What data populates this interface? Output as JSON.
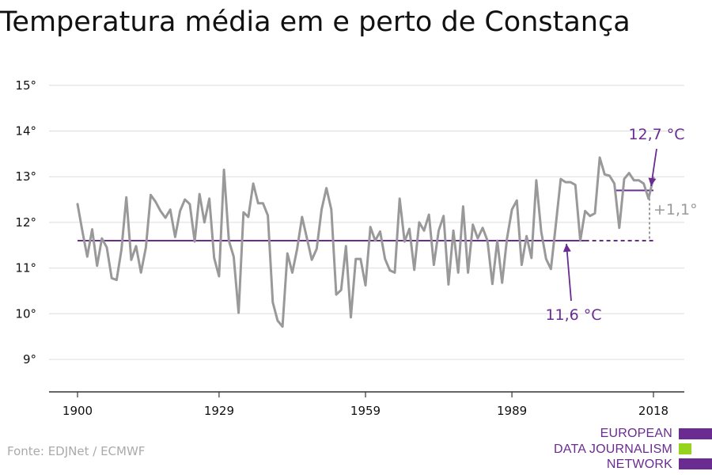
{
  "title": "Temperatura média em e perto de Constança",
  "source": "Fonte: EDJNet / ECMWF",
  "logo": {
    "lines": [
      "EUROPEAN",
      "DATA JOURNALISM",
      "NETWORK"
    ],
    "colors": {
      "primary": "#6a2c91",
      "accent": "#96d31e"
    }
  },
  "colors": {
    "series": "#999999",
    "baseline": "#6a2c91",
    "recent": "#6a2c91",
    "grid": "#dddddd",
    "axis": "#333333",
    "difference": "#999999"
  },
  "chart_data": {
    "type": "line",
    "ylim": [
      8.2,
      15.4
    ],
    "xlim": [
      1900,
      2018
    ],
    "y_ticks": [
      9,
      10,
      11,
      12,
      13,
      14,
      15
    ],
    "y_tick_labels": [
      "9°",
      "10°",
      "11°",
      "12°",
      "13°",
      "14°",
      "15°"
    ],
    "x_ticks": [
      1900,
      1929,
      1959,
      1989,
      2018
    ],
    "x_tick_labels": [
      "1900",
      "1929",
      "1959",
      "1989",
      "2018"
    ],
    "grid": true,
    "x": [
      1900,
      1901,
      1902,
      1903,
      1904,
      1905,
      1906,
      1907,
      1908,
      1909,
      1910,
      1911,
      1912,
      1913,
      1914,
      1915,
      1916,
      1917,
      1918,
      1919,
      1920,
      1921,
      1922,
      1923,
      1924,
      1925,
      1926,
      1927,
      1928,
      1929,
      1930,
      1931,
      1932,
      1933,
      1934,
      1935,
      1936,
      1937,
      1938,
      1939,
      1940,
      1941,
      1942,
      1943,
      1944,
      1945,
      1946,
      1947,
      1948,
      1949,
      1950,
      1951,
      1952,
      1953,
      1954,
      1955,
      1956,
      1957,
      1958,
      1959,
      1960,
      1961,
      1962,
      1963,
      1964,
      1965,
      1966,
      1967,
      1968,
      1969,
      1970,
      1971,
      1972,
      1973,
      1974,
      1975,
      1976,
      1977,
      1978,
      1979,
      1980,
      1981,
      1982,
      1983,
      1984,
      1985,
      1986,
      1987,
      1988,
      1989,
      1990,
      1991,
      1992,
      1993,
      1994,
      1995,
      1996,
      1997,
      1998,
      1999,
      2000,
      2001,
      2002,
      2003,
      2004,
      2005,
      2006,
      2007,
      2008,
      2009,
      2010,
      2011,
      2012,
      2013,
      2014,
      2015,
      2016,
      2017,
      2018
    ],
    "y": [
      12.4,
      11.8,
      11.25,
      11.85,
      11.05,
      11.65,
      11.45,
      10.78,
      10.74,
      11.4,
      12.55,
      11.18,
      11.48,
      10.9,
      11.45,
      12.6,
      12.45,
      12.25,
      12.1,
      12.28,
      11.68,
      12.25,
      12.5,
      12.4,
      11.58,
      12.62,
      12.0,
      12.52,
      11.22,
      10.82,
      13.15,
      11.6,
      11.25,
      10.02,
      12.22,
      12.12,
      12.85,
      12.42,
      12.42,
      12.15,
      10.25,
      9.85,
      9.72,
      11.32,
      10.9,
      11.42,
      12.12,
      11.65,
      11.18,
      11.42,
      12.28,
      12.75,
      12.28,
      10.42,
      10.52,
      11.48,
      9.92,
      11.2,
      11.2,
      10.62,
      11.9,
      11.6,
      11.8,
      11.2,
      10.95,
      10.9,
      12.52,
      11.58,
      11.86,
      10.96,
      12.0,
      11.82,
      12.17,
      11.07,
      11.82,
      12.14,
      10.64,
      11.82,
      10.9,
      12.35,
      10.9,
      11.95,
      11.65,
      11.88,
      11.6,
      10.65,
      11.6,
      10.68,
      11.65,
      12.28,
      12.48,
      11.07,
      11.7,
      11.22,
      12.92,
      11.8,
      11.2,
      10.98,
      11.95,
      12.95,
      12.88,
      12.88,
      12.82,
      11.6,
      12.25,
      12.14,
      12.2,
      13.42,
      13.05,
      13.02,
      12.85,
      11.88,
      12.95,
      13.08,
      12.92,
      12.92,
      12.85,
      12.52,
      12.98
    ],
    "baseline": {
      "value": 11.6,
      "label": "11,6 °C"
    },
    "recent": {
      "value": 12.7,
      "start": 2010,
      "label": "12,7 °C"
    },
    "difference_label": "+1,1°"
  }
}
